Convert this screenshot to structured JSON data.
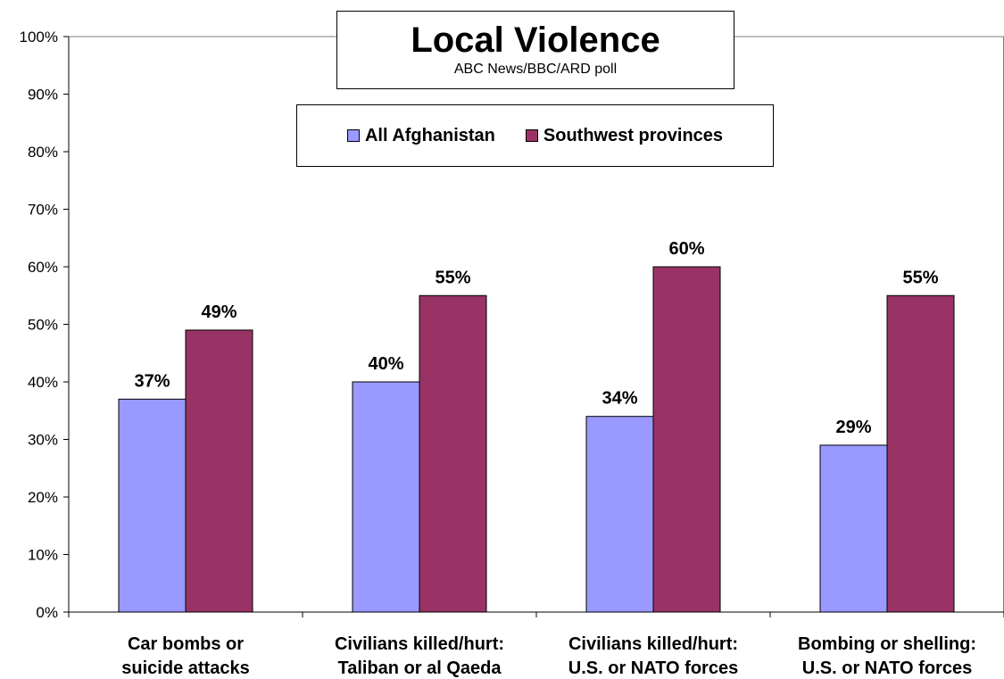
{
  "chart_data": {
    "type": "bar",
    "title": "Local Violence",
    "subtitle": "ABC News/BBC/ARD poll",
    "categories": [
      [
        "Car bombs or",
        "suicide attacks"
      ],
      [
        "Civilians killed/hurt:",
        "Taliban or al Qaeda"
      ],
      [
        "Civilians killed/hurt:",
        "U.S. or NATO forces"
      ],
      [
        "Bombing or shelling:",
        "U.S. or NATO forces"
      ]
    ],
    "series": [
      {
        "name": "All Afghanistan",
        "color": "#9999ff",
        "values": [
          37,
          40,
          34,
          29
        ]
      },
      {
        "name": "Southwest provinces",
        "color": "#993366",
        "values": [
          49,
          55,
          60,
          55
        ]
      }
    ],
    "ylim": [
      0,
      100
    ],
    "yticks": [
      "0%",
      "10%",
      "20%",
      "30%",
      "40%",
      "50%",
      "60%",
      "70%",
      "80%",
      "90%",
      "100%"
    ],
    "value_suffix": "%",
    "legend_position": "top-center",
    "grid": false
  }
}
